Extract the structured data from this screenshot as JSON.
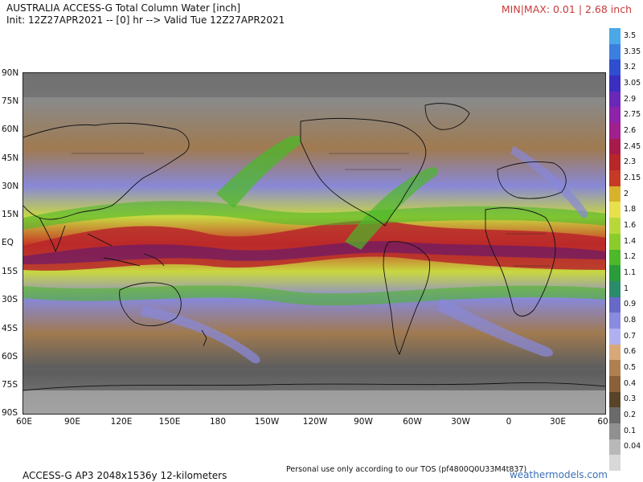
{
  "header": {
    "title_line1": "AUSTRALIA ACCESS-G Total Column Water [inch]",
    "title_line2": "Init: 12Z27APR2021 -- [0] hr --> Valid Tue 12Z27APR2021",
    "minmax": "MIN|MAX: 0.01 | 2.68 inch"
  },
  "map": {
    "lat_labels": [
      "90N",
      "75N",
      "60N",
      "45N",
      "30N",
      "15N",
      "EQ",
      "15S",
      "30S",
      "45S",
      "60S",
      "75S",
      "90S"
    ],
    "lon_labels": [
      "60E",
      "90E",
      "120E",
      "150E",
      "180",
      "150W",
      "120W",
      "90W",
      "60W",
      "30W",
      "0",
      "30E",
      "60"
    ]
  },
  "legend": {
    "labels": [
      "3.5",
      "3.35",
      "3.2",
      "3.05",
      "2.9",
      "2.75",
      "2.6",
      "2.45",
      "2.3",
      "2.15",
      "2",
      "1.8",
      "1.6",
      "1.4",
      "1.2",
      "1.1",
      "1",
      "0.9",
      "0.8",
      "0.7",
      "0.6",
      "0.5",
      "0.4",
      "0.3",
      "0.2",
      "0.1",
      "0.04"
    ],
    "colors": [
      "#4aa8e8",
      "#3b7fe0",
      "#2f4fd0",
      "#3a2fc0",
      "#6a28b8",
      "#8e22a8",
      "#a0208e",
      "#a81a4a",
      "#b8262a",
      "#c83a26",
      "#d8b22a",
      "#e8e04a",
      "#b8d83a",
      "#8ccc2a",
      "#4cb82a",
      "#2a9c3a",
      "#2a8c6a",
      "#6868c8",
      "#8a8ae0",
      "#b0b0f0",
      "#d8a878",
      "#b08050",
      "#8c6038",
      "#5a4428",
      "#6a6a6a",
      "#909090",
      "#b8b8b8",
      "#d8d8d8"
    ]
  },
  "footer": {
    "left": "ACCESS-G AP3 2048x1536y 12-kilometers",
    "middle": "Personal use only according to our TOS (pf4800Q0U33M4t837)",
    "brand": "weathermodels.com"
  }
}
